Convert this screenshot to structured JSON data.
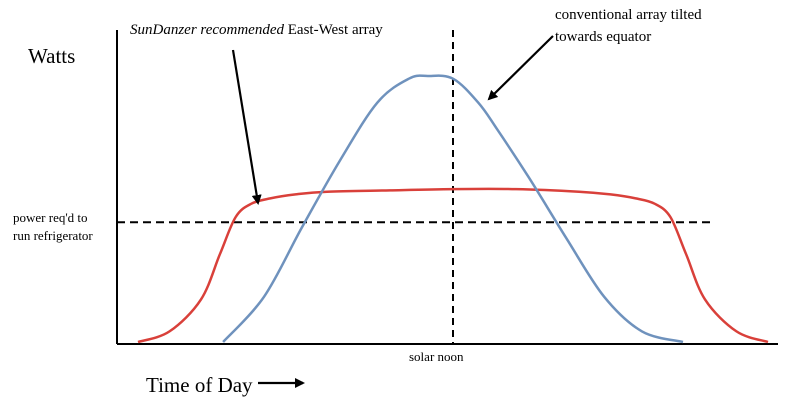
{
  "chart_data": {
    "type": "line",
    "xlabel": "Time of Day",
    "ylabel": "Watts",
    "x_marker": {
      "label": "solar noon"
    },
    "threshold": {
      "label_line1": "power req'd to",
      "label_line2": "run refrigerator",
      "y": 0.45
    },
    "grid": false,
    "legend": "none",
    "annotations": [
      {
        "id": "east-west",
        "text_italic": "SunDanzer recommended",
        "text_plain": " East-West array"
      },
      {
        "id": "conventional",
        "line1": "conventional array tilted",
        "line2": "towards equator"
      }
    ],
    "series": [
      {
        "id": "east-west",
        "color": "#d9403a",
        "x": [
          0.0,
          0.05,
          0.1,
          0.13,
          0.155,
          0.18,
          0.21,
          0.25,
          0.3,
          0.4,
          0.5,
          0.6,
          0.7,
          0.75,
          0.79,
          0.82,
          0.845,
          0.87,
          0.9,
          0.95,
          1.0
        ],
        "y": [
          0.0,
          0.04,
          0.16,
          0.33,
          0.47,
          0.52,
          0.54,
          0.555,
          0.565,
          0.57,
          0.575,
          0.575,
          0.565,
          0.555,
          0.54,
          0.52,
          0.47,
          0.33,
          0.16,
          0.04,
          0.0
        ]
      },
      {
        "id": "conventional",
        "color": "#6f92bd",
        "x": [
          0.135,
          0.2,
          0.26,
          0.32,
          0.38,
          0.43,
          0.46,
          0.5,
          0.54,
          0.57,
          0.62,
          0.68,
          0.74,
          0.8,
          0.865
        ],
        "y": [
          0.0,
          0.17,
          0.43,
          0.68,
          0.9,
          0.99,
          1.0,
          0.99,
          0.9,
          0.8,
          0.62,
          0.39,
          0.17,
          0.04,
          0.0
        ]
      }
    ]
  }
}
